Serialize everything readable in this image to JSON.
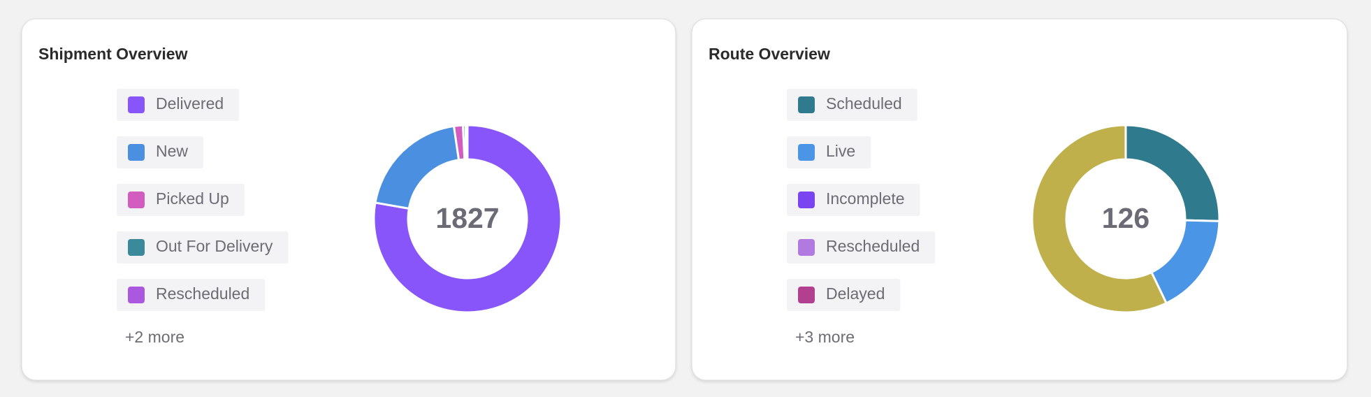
{
  "chart_data": [
    {
      "type": "donut",
      "title": "Shipment Overview",
      "total": 1827,
      "categories": [
        "Delivered",
        "New",
        "Picked Up",
        "Out For Delivery",
        "Rescheduled"
      ],
      "values": [
        1405,
        360,
        28,
        8,
        6
      ],
      "colors": [
        "#8755fa",
        "#4a8fe0",
        "#d25cc0",
        "#3b8a9c",
        "#a958df"
      ],
      "more": "+2 more"
    },
    {
      "type": "donut",
      "title": "Route Overview",
      "total": 126,
      "categories": [
        "Scheduled",
        "Live",
        "Incomplete",
        "Rescheduled",
        "Delayed",
        null
      ],
      "values": [
        32,
        22,
        0,
        0,
        0,
        72
      ],
      "colors": [
        "#2f7a8c",
        "#4a95e6",
        "#7a45f0",
        "#b07ae0",
        "#b2408f",
        "#bfb04c"
      ],
      "more": "+3 more"
    }
  ]
}
